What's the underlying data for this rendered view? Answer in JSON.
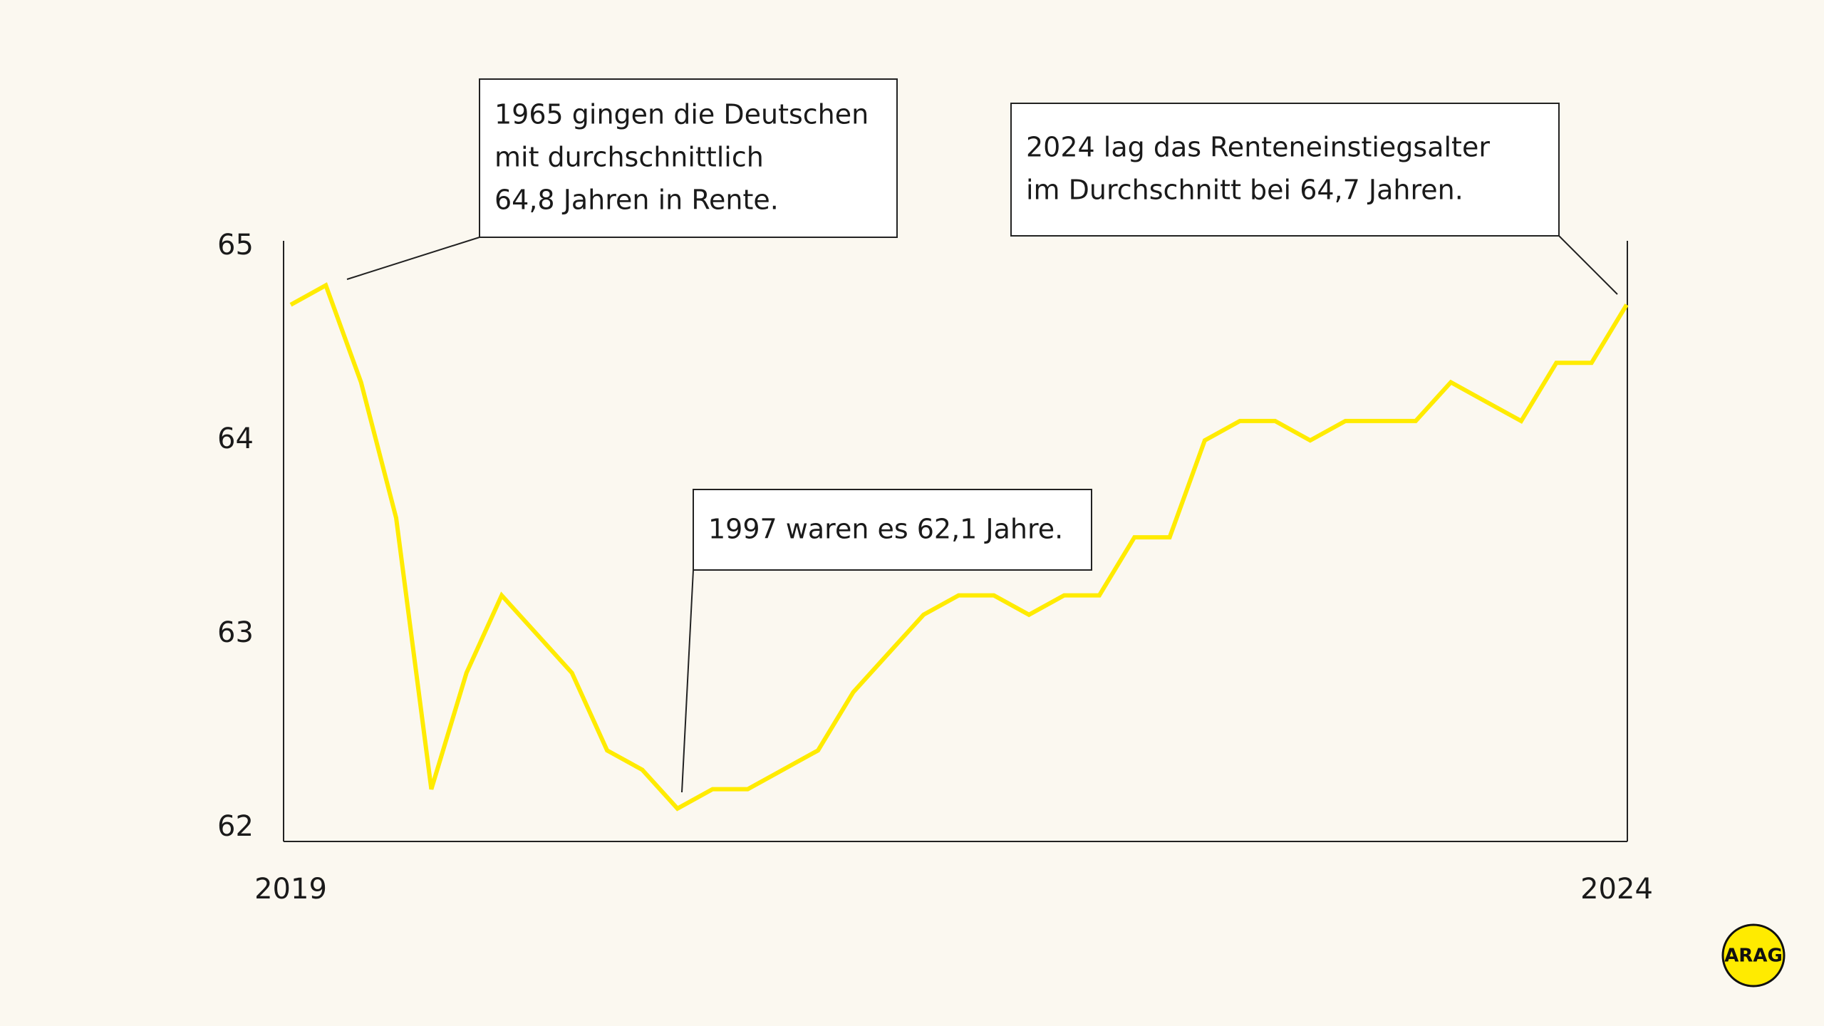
{
  "chart_data": {
    "type": "line",
    "categories": [
      "2019",
      null,
      null,
      null,
      null,
      null,
      null,
      null,
      null,
      null,
      null,
      null,
      null,
      null,
      null,
      null,
      null,
      null,
      null,
      null,
      null,
      null,
      null,
      null,
      null,
      null,
      null,
      null,
      null,
      null,
      null,
      null,
      null,
      null,
      null,
      null,
      null,
      null,
      "2024"
    ],
    "series": [
      {
        "color": "#ffeb00",
        "values": [
          64.7,
          64.8,
          64.3,
          63.6,
          62.2,
          62.8,
          63.2,
          63.0,
          62.8,
          62.4,
          62.3,
          62.1,
          62.2,
          62.2,
          62.3,
          62.4,
          62.7,
          62.9,
          63.1,
          63.2,
          63.2,
          63.1,
          63.2,
          63.2,
          63.5,
          63.5,
          64.0,
          64.1,
          64.1,
          64.0,
          64.1,
          64.1,
          64.1,
          64.3,
          64.2,
          64.1,
          64.4,
          64.4,
          64.7
        ]
      }
    ],
    "ylim": [
      61.93,
      65.03
    ],
    "yticks": [
      62,
      63,
      64,
      65
    ],
    "grid": false,
    "annotations": [
      {
        "lines": [
          "1965 gingen die Deutschen",
          "mit durchschnittlich",
          "64,8 Jahren in Rente."
        ]
      },
      {
        "lines": [
          "2024 lag das Renteneinstiegsalter",
          "im Durchschnitt bei 64,7 Jahren."
        ]
      },
      {
        "lines": [
          "1997 waren es 62,1 Jahre."
        ]
      }
    ]
  },
  "logo": "ARAG"
}
